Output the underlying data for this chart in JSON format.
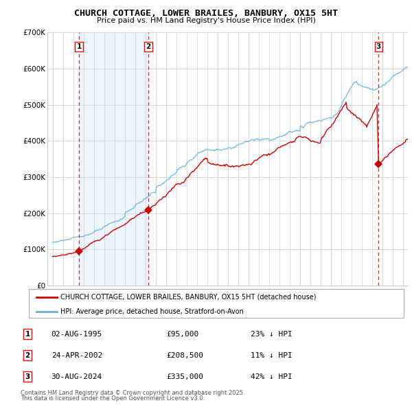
{
  "title": "CHURCH COTTAGE, LOWER BRAILES, BANBURY, OX15 5HT",
  "subtitle": "Price paid vs. HM Land Registry's House Price Index (HPI)",
  "legend_line1": "CHURCH COTTAGE, LOWER BRAILES, BANBURY, OX15 5HT (detached house)",
  "legend_line2": "HPI: Average price, detached house, Stratford-on-Avon",
  "footer_line1": "Contains HM Land Registry data © Crown copyright and database right 2025.",
  "footer_line2": "This data is licensed under the Open Government Licence v3.0.",
  "transactions": [
    {
      "label": "1",
      "date": "02-AUG-1995",
      "price": 95000,
      "hpi_note": "23% ↓ HPI",
      "x_year": 1995.58
    },
    {
      "label": "2",
      "date": "24-APR-2002",
      "price": 208500,
      "hpi_note": "11% ↓ HPI",
      "x_year": 2002.31
    },
    {
      "label": "3",
      "date": "30-AUG-2024",
      "price": 335000,
      "hpi_note": "42% ↓ HPI",
      "x_year": 2024.66
    }
  ],
  "hpi_color": "#6baed6",
  "price_color": "#cc0000",
  "marker_color": "#cc0000",
  "dashed_color": "#cc0000",
  "hatch_fill_color": "#ddeeff",
  "ylim": [
    0,
    700000
  ],
  "xlim_start": 1992.5,
  "xlim_end": 2027.5,
  "yticks": [
    0,
    100000,
    200000,
    300000,
    400000,
    500000,
    600000,
    700000
  ],
  "ytick_labels": [
    "£0",
    "£100K",
    "£200K",
    "£300K",
    "£400K",
    "£500K",
    "£600K",
    "£700K"
  ],
  "xticks": [
    1993,
    1994,
    1995,
    1996,
    1997,
    1998,
    1999,
    2000,
    2001,
    2002,
    2003,
    2004,
    2005,
    2006,
    2007,
    2008,
    2009,
    2010,
    2011,
    2012,
    2013,
    2014,
    2015,
    2016,
    2017,
    2018,
    2019,
    2020,
    2021,
    2022,
    2023,
    2024,
    2025,
    2026,
    2027
  ],
  "grid_color": "#cccccc",
  "sale_points": [
    [
      1995.58,
      95000
    ],
    [
      2002.31,
      208500
    ],
    [
      2024.66,
      335000
    ]
  ]
}
